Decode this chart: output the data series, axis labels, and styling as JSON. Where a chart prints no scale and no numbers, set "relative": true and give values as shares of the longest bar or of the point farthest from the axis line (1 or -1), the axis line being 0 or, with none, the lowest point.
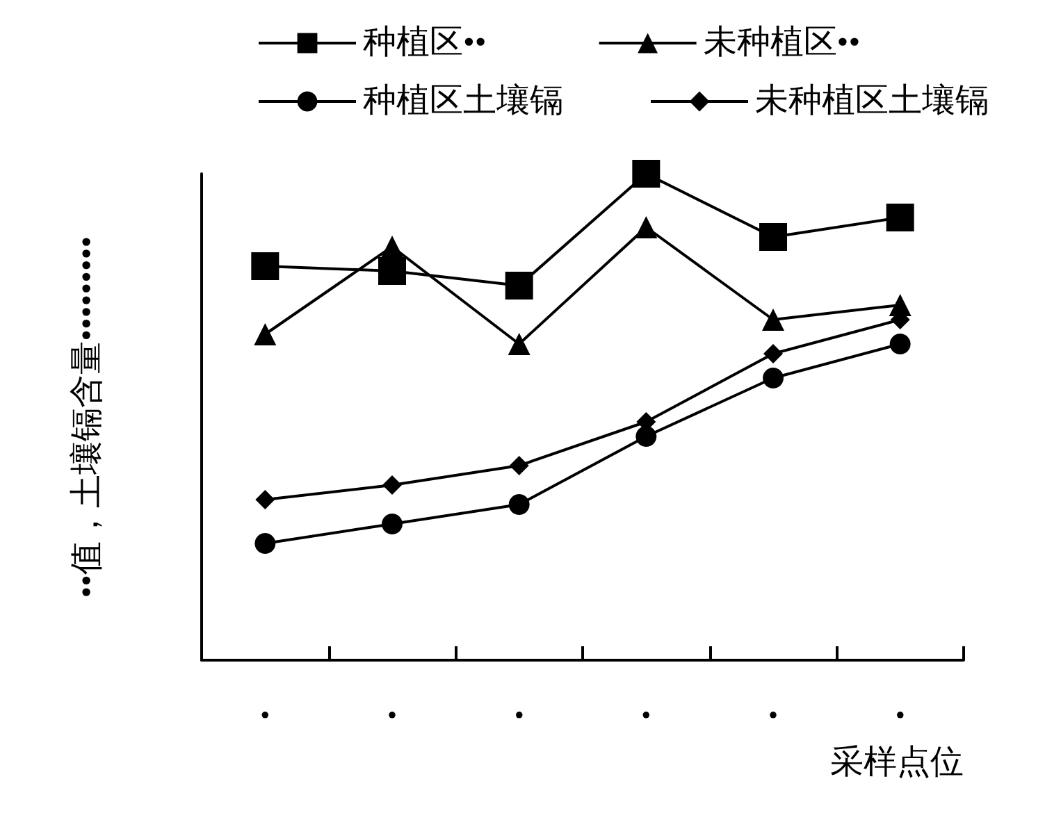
{
  "chart_data": {
    "type": "line",
    "relative": true,
    "ylabel": "••值，土壤镉含量•••••••••",
    "xlabel": "采样点位",
    "categories": [
      "•",
      "•",
      "•",
      "•",
      "•",
      "•"
    ],
    "legend": "top",
    "grid": false,
    "line_style": "solid",
    "series": [
      {
        "name": "种植区••",
        "color": "#000000",
        "marker": "square",
        "values": [
          0.81,
          0.8,
          0.77,
          1,
          0.87,
          0.91
        ]
      },
      {
        "name": "未种植区••",
        "color": "#000000",
        "marker": "triangle",
        "values": [
          0.67,
          0.85,
          0.65,
          0.89,
          0.7,
          0.73
        ]
      },
      {
        "name": "种植区土壤镉",
        "color": "#000000",
        "marker": "circle",
        "values": [
          0.24,
          0.28,
          0.32,
          0.46,
          0.58,
          0.65
        ]
      },
      {
        "name": "未种植区土壤镉",
        "color": "#000000",
        "marker": "diamond",
        "values": [
          0.33,
          0.36,
          0.4,
          0.49,
          0.63,
          0.7
        ]
      }
    ]
  }
}
